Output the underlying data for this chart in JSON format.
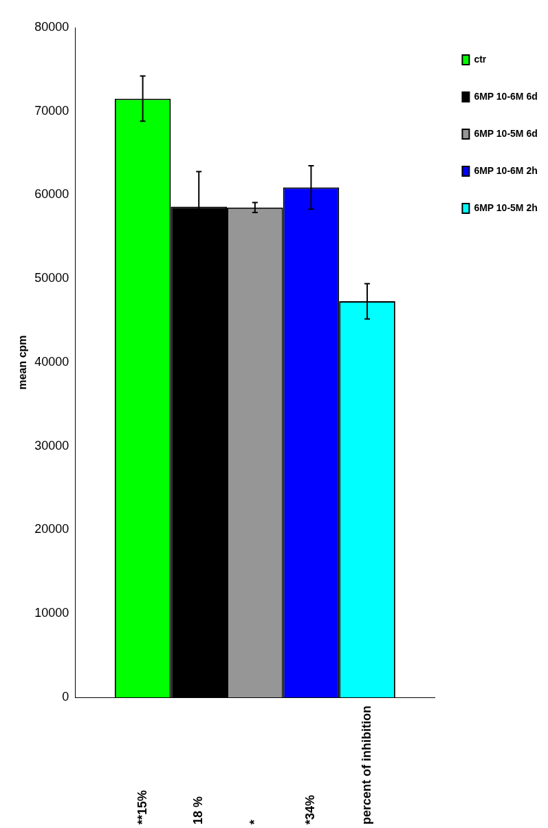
{
  "chart_data": {
    "type": "bar",
    "ylabel": "mean cpm",
    "categories": [
      null
    ],
    "series": [
      {
        "name": "ctr",
        "color": "#00ff00",
        "values": [
          71500
        ],
        "errors": [
          2700
        ]
      },
      {
        "name": "6MP 10-6M 6d",
        "color": "#000000",
        "values": [
          58600
        ],
        "errors": [
          4200
        ]
      },
      {
        "name": "6MP 10-5M 6d",
        "color": "#969696",
        "values": [
          58500
        ],
        "errors": [
          600
        ]
      },
      {
        "name": "6MP 10-6M 2h",
        "color": "#0000ff",
        "values": [
          60900
        ],
        "errors": [
          2600
        ]
      },
      {
        "name": "6MP 10-5M 2h",
        "color": "#00ffff",
        "values": [
          47300
        ],
        "errors": [
          2100
        ]
      }
    ],
    "ylim": [
      0,
      80000
    ],
    "yticks": [
      0,
      10000,
      20000,
      30000,
      40000,
      50000,
      60000,
      70000,
      80000
    ],
    "grid": false,
    "legend": "top right",
    "annotations": [
      "**15%",
      "18 %",
      "*",
      "*34%",
      "percent of inhibition"
    ]
  }
}
